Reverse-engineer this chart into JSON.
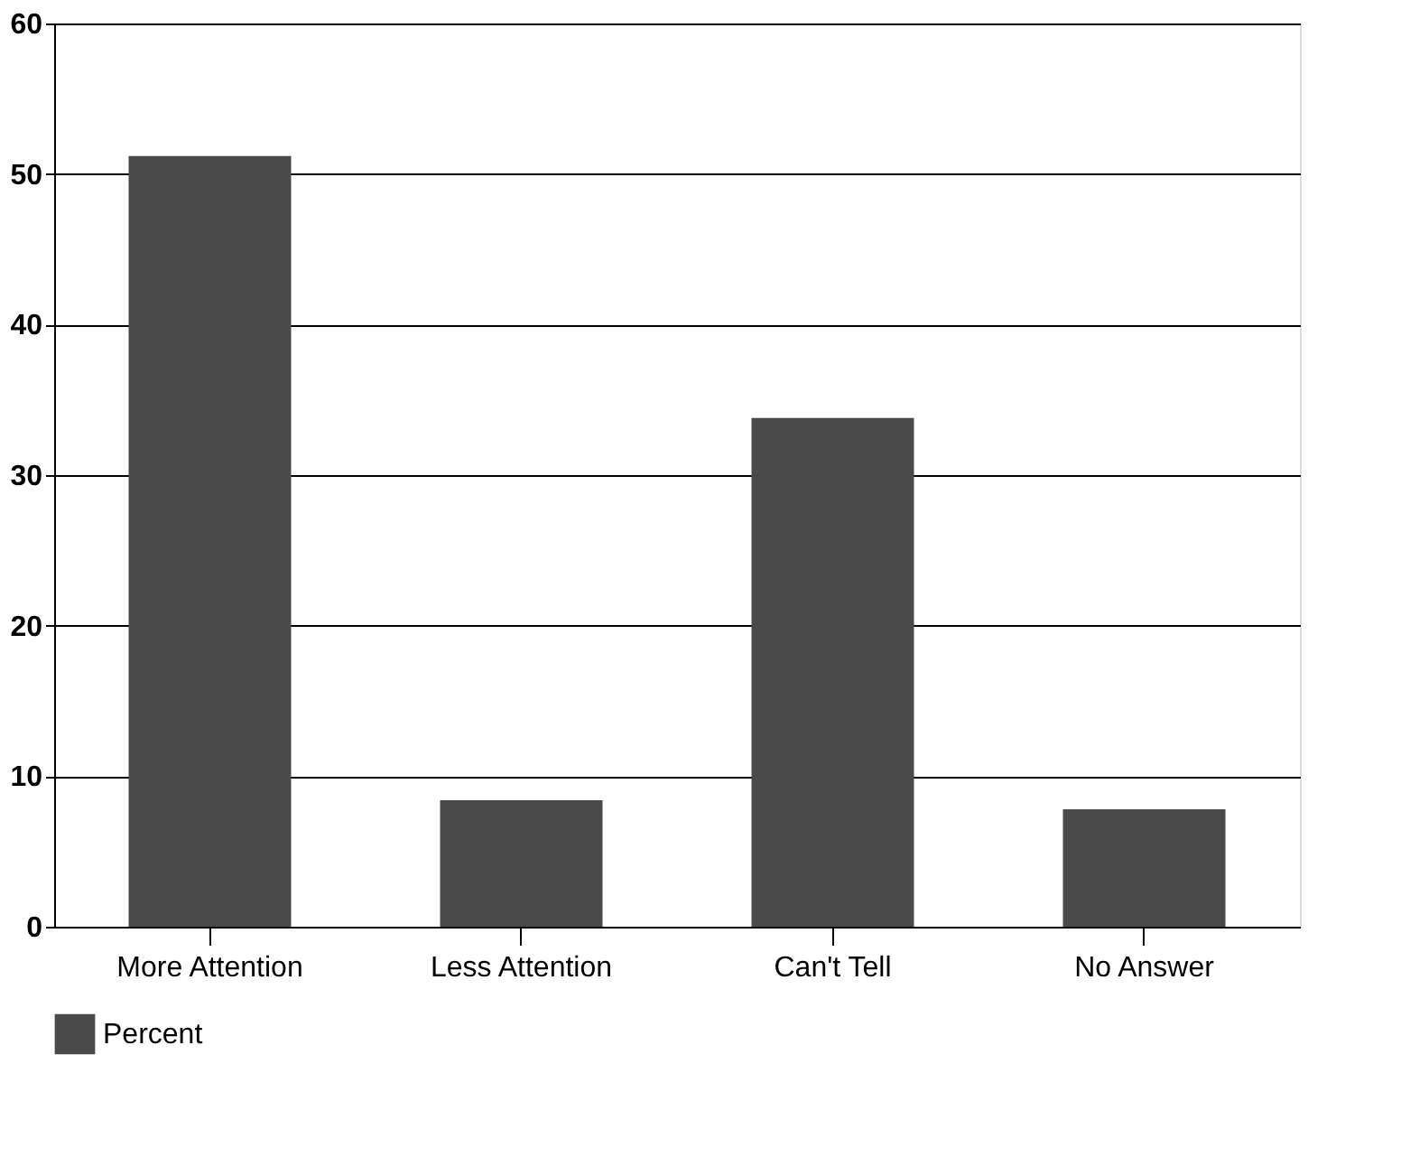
{
  "chart_data": {
    "type": "bar",
    "categories": [
      "More Attention",
      "Less Attention",
      "Can't Tell",
      "No Answer"
    ],
    "series": [
      {
        "name": "Percent",
        "color": "#4a4a4a",
        "values": [
          51.2,
          8.4,
          33.8,
          7.8
        ]
      }
    ],
    "ylim": [
      0,
      60
    ],
    "yticks": [
      0,
      10,
      20,
      30,
      40,
      50,
      60
    ],
    "grid": "y",
    "legend": "bottom"
  }
}
